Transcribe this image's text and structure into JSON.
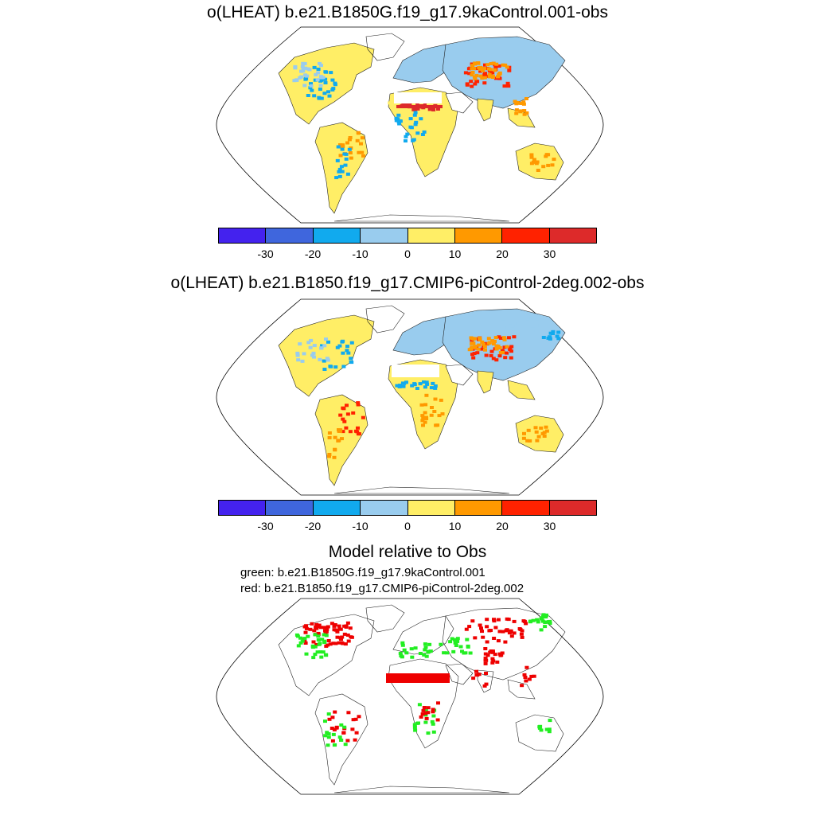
{
  "panels": [
    {
      "title": "o(LHEAT) b.e21.B1850G.f19_g17.9kaControl.001-obs",
      "colorbar": {
        "colors": [
          "#4422ee",
          "#3f66dd",
          "#11aaee",
          "#99ccee",
          "#ffee66",
          "#ff9900",
          "#ff2200",
          "#dd2a2a"
        ],
        "labels": [
          "-30",
          "-20",
          "-10",
          "0",
          "10",
          "20",
          "30"
        ]
      }
    },
    {
      "title": "o(LHEAT) b.e21.B1850.f19_g17.CMIP6-piControl-2deg.002-obs",
      "colorbar": {
        "colors": [
          "#4422ee",
          "#3f66dd",
          "#11aaee",
          "#99ccee",
          "#ffee66",
          "#ff9900",
          "#ff2200",
          "#dd2a2a"
        ],
        "labels": [
          "-30",
          "-20",
          "-10",
          "0",
          "10",
          "20",
          "30"
        ]
      }
    },
    {
      "title": "Model relative to Obs",
      "legend_green": "green: b.e21.B1850G.f19_g17.9kaControl.001",
      "legend_red": "red: b.e21.B1850.f19_g17.CMIP6-piControl-2deg.002",
      "colors": {
        "green": "#22ee22",
        "red": "#ee0000"
      }
    }
  ]
}
